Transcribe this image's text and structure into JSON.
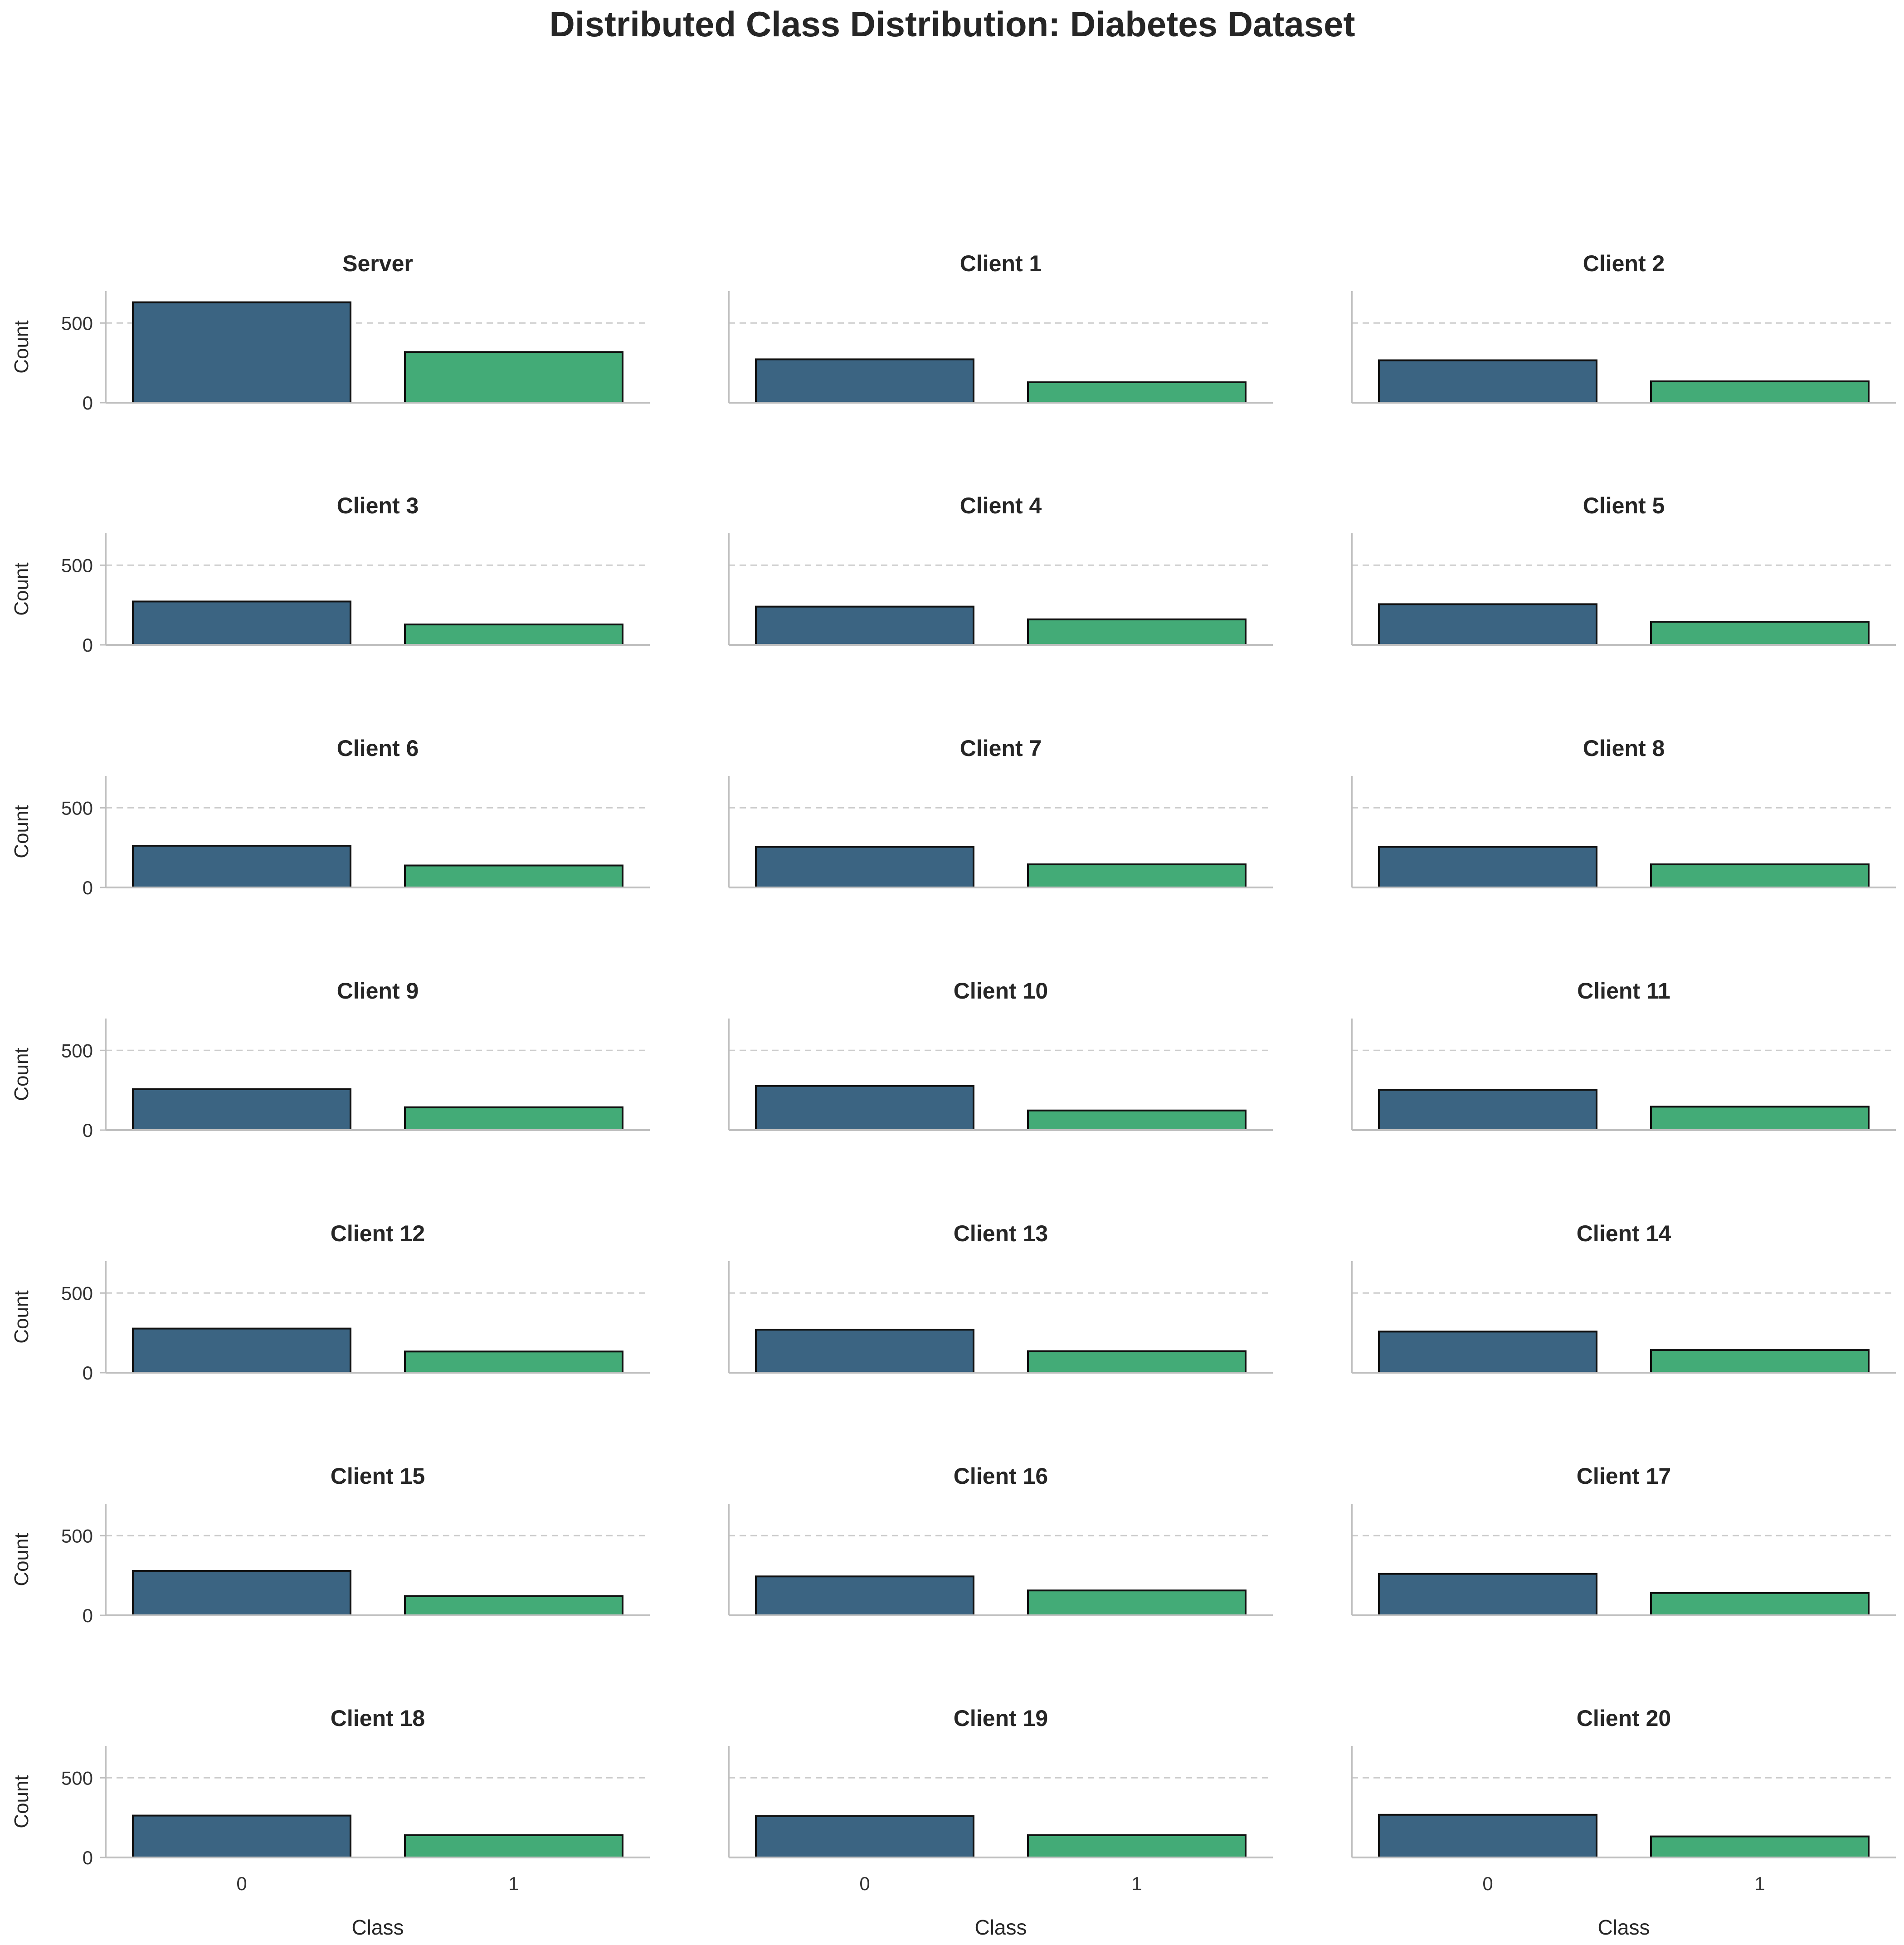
{
  "chart_data": {
    "type": "bar",
    "title": "Distributed Class Distribution: Diabetes Dataset",
    "xlabel": "Class",
    "ylabel": "Count",
    "categories": [
      "0",
      "1"
    ],
    "ylim": [
      0,
      700
    ],
    "yticks": [
      0,
      500
    ],
    "grid": "y-dashed",
    "colors": [
      "#3b6482",
      "#43ab77"
    ],
    "panels": [
      {
        "name": "Server",
        "values": [
          630,
          318
        ]
      },
      {
        "name": "Client 1",
        "values": [
          272,
          128
        ]
      },
      {
        "name": "Client 2",
        "values": [
          266,
          134
        ]
      },
      {
        "name": "Client 3",
        "values": [
          272,
          128
        ]
      },
      {
        "name": "Client 4",
        "values": [
          240,
          160
        ]
      },
      {
        "name": "Client 5",
        "values": [
          255,
          145
        ]
      },
      {
        "name": "Client 6",
        "values": [
          262,
          138
        ]
      },
      {
        "name": "Client 7",
        "values": [
          255,
          145
        ]
      },
      {
        "name": "Client 8",
        "values": [
          255,
          145
        ]
      },
      {
        "name": "Client 9",
        "values": [
          257,
          143
        ]
      },
      {
        "name": "Client 10",
        "values": [
          277,
          123
        ]
      },
      {
        "name": "Client 11",
        "values": [
          253,
          147
        ]
      },
      {
        "name": "Client 12",
        "values": [
          277,
          133
        ]
      },
      {
        "name": "Client 13",
        "values": [
          270,
          135
        ]
      },
      {
        "name": "Client 14",
        "values": [
          258,
          142
        ]
      },
      {
        "name": "Client 15",
        "values": [
          279,
          121
        ]
      },
      {
        "name": "Client 16",
        "values": [
          244,
          156
        ]
      },
      {
        "name": "Client 17",
        "values": [
          260,
          140
        ]
      },
      {
        "name": "Client 18",
        "values": [
          263,
          140
        ]
      },
      {
        "name": "Client 19",
        "values": [
          260,
          140
        ]
      },
      {
        "name": "Client 20",
        "values": [
          268,
          132
        ]
      }
    ]
  }
}
